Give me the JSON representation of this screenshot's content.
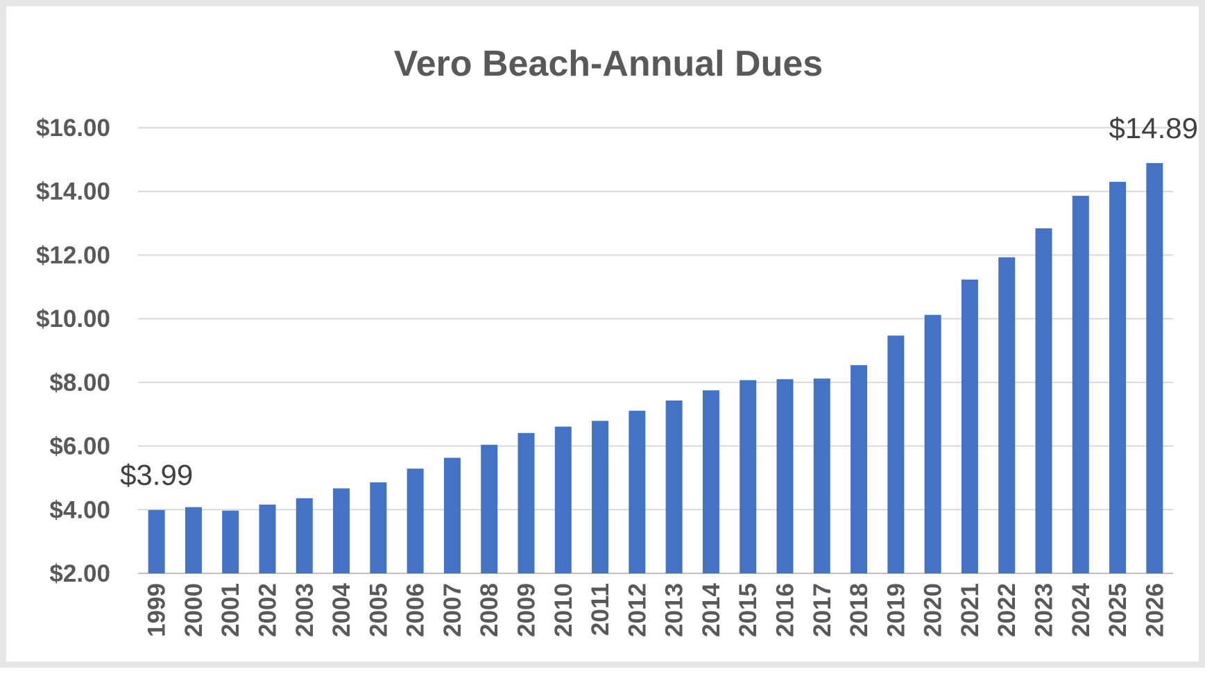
{
  "chart_data": {
    "type": "bar",
    "title": "Vero Beach-Annual Dues",
    "xlabel": "",
    "ylabel": "",
    "ylim": [
      2,
      16
    ],
    "y_ticks": [
      "$2.00",
      "$4.00",
      "$6.00",
      "$8.00",
      "$10.00",
      "$12.00",
      "$14.00",
      "$16.00"
    ],
    "y_tick_values": [
      2,
      4,
      6,
      8,
      10,
      12,
      14,
      16
    ],
    "grid": true,
    "bar_color": "#4472c4",
    "categories": [
      "1999",
      "2000",
      "2001",
      "2002",
      "2003",
      "2004",
      "2005",
      "2006",
      "2007",
      "2008",
      "2009",
      "2010",
      "2011",
      "2012",
      "2013",
      "2014",
      "2015",
      "2016",
      "2017",
      "2018",
      "2019",
      "2020",
      "2021",
      "2022",
      "2023",
      "2024",
      "2025",
      "2026"
    ],
    "values": [
      3.99,
      4.08,
      3.97,
      4.16,
      4.36,
      4.67,
      4.86,
      5.29,
      5.63,
      6.04,
      6.41,
      6.61,
      6.79,
      7.11,
      7.43,
      7.75,
      8.07,
      8.1,
      8.12,
      8.54,
      9.47,
      10.12,
      11.23,
      11.93,
      12.84,
      13.86,
      14.3,
      14.89
    ],
    "annotations": [
      {
        "category": "1999",
        "text": "$3.99"
      },
      {
        "category": "2026",
        "text": "$14.89"
      }
    ]
  }
}
